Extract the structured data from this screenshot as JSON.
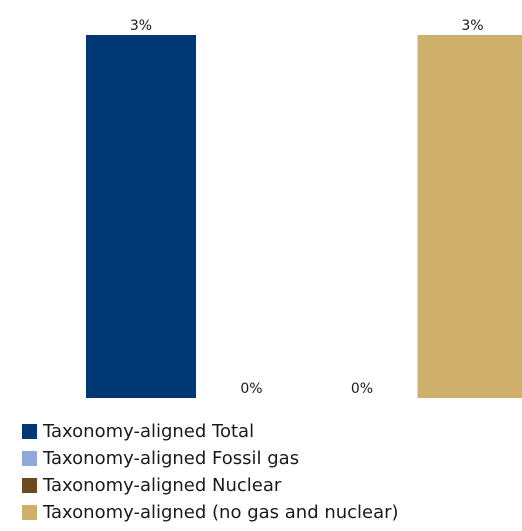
{
  "chart_data": {
    "type": "bar",
    "categories": [
      "Taxonomy-aligned Total",
      "Taxonomy-aligned Fossil gas",
      "Taxonomy-aligned Nuclear",
      "Taxonomy-aligned (no gas and nuclear)"
    ],
    "values": [
      3,
      0,
      0,
      3
    ],
    "data_labels": [
      "3%",
      "0%",
      "0%",
      "3%"
    ],
    "colors": [
      "#003876",
      "#8fa9d9",
      "#6b4a22",
      "#cfb06a"
    ],
    "ylim": [
      0,
      3
    ],
    "grid": false,
    "legend_position": "bottom-left"
  },
  "legend": {
    "items": [
      {
        "label": "Taxonomy-aligned Total",
        "color": "#003876"
      },
      {
        "label": "Taxonomy-aligned Fossil gas",
        "color": "#8fa9d9"
      },
      {
        "label": "Taxonomy-aligned Nuclear",
        "color": "#6b4a22"
      },
      {
        "label": "Taxonomy-aligned (no gas and nuclear)",
        "color": "#cfb06a"
      }
    ]
  }
}
